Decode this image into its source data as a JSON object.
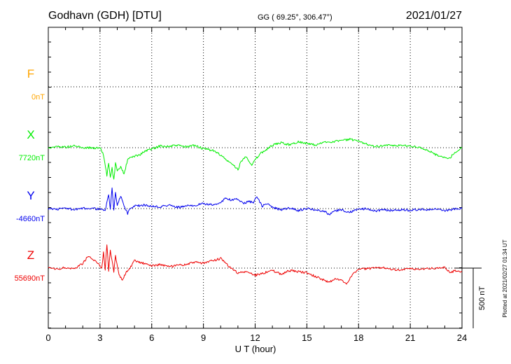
{
  "header": {
    "station": "Godhavn (GDH)  [DTU]",
    "coords": "GG ( 69.25°, 306.47°)",
    "date": "2021/01/27"
  },
  "plotted_at": "Plotted at 2021/02/27 01:34  UT",
  "scale_label": "500 nT",
  "chart_data": {
    "type": "line",
    "xlabel": "U T (hour)",
    "xlim": [
      0,
      24
    ],
    "xticks": [
      "0",
      "3",
      "6",
      "9",
      "12",
      "15",
      "18",
      "21",
      "24"
    ],
    "y_unit_per_row_nT": 500,
    "scale_bar_nT": 500,
    "grid": true,
    "series": [
      {
        "name": "F",
        "baseline": "0nT",
        "color": "#ffa500",
        "points": []
      },
      {
        "name": "X",
        "baseline": "7720nT",
        "color": "#00ee00",
        "points": [
          [
            0,
            0
          ],
          [
            0.5,
            10
          ],
          [
            1,
            5
          ],
          [
            1.5,
            15
          ],
          [
            2,
            0
          ],
          [
            2.5,
            0
          ],
          [
            3,
            -5
          ],
          [
            3.2,
            -60
          ],
          [
            3.4,
            -230
          ],
          [
            3.5,
            -120
          ],
          [
            3.6,
            -250
          ],
          [
            3.7,
            -170
          ],
          [
            3.8,
            -270
          ],
          [
            3.9,
            -130
          ],
          [
            4,
            -200
          ],
          [
            4.2,
            -160
          ],
          [
            4.4,
            -220
          ],
          [
            4.6,
            -100
          ],
          [
            4.8,
            -80
          ],
          [
            5,
            -70
          ],
          [
            5.3,
            -60
          ],
          [
            5.6,
            -30
          ],
          [
            6,
            -10
          ],
          [
            6.5,
            15
          ],
          [
            7,
            10
          ],
          [
            7.5,
            20
          ],
          [
            8,
            5
          ],
          [
            8.5,
            20
          ],
          [
            9,
            -10
          ],
          [
            9.5,
            -20
          ],
          [
            10,
            -60
          ],
          [
            10.3,
            -100
          ],
          [
            10.6,
            -130
          ],
          [
            11,
            -180
          ],
          [
            11.2,
            -110
          ],
          [
            11.5,
            -70
          ],
          [
            11.8,
            -150
          ],
          [
            12,
            -100
          ],
          [
            12.3,
            -50
          ],
          [
            12.6,
            -20
          ],
          [
            13,
            20
          ],
          [
            13.5,
            40
          ],
          [
            14,
            25
          ],
          [
            14.5,
            50
          ],
          [
            15,
            35
          ],
          [
            15.5,
            20
          ],
          [
            16,
            45
          ],
          [
            16.5,
            50
          ],
          [
            17,
            60
          ],
          [
            17.5,
            70
          ],
          [
            18,
            50
          ],
          [
            18.5,
            30
          ],
          [
            19,
            10
          ],
          [
            19.5,
            20
          ],
          [
            20,
            15
          ],
          [
            20.5,
            20
          ],
          [
            21,
            15
          ],
          [
            21.5,
            0
          ],
          [
            22,
            -20
          ],
          [
            22.5,
            -60
          ],
          [
            23,
            -80
          ],
          [
            23.3,
            -90
          ],
          [
            23.5,
            -50
          ],
          [
            24,
            0
          ]
        ]
      },
      {
        "name": "Y",
        "baseline": "-4660nT",
        "color": "#0000ee",
        "points": [
          [
            0,
            0
          ],
          [
            0.5,
            -5
          ],
          [
            1,
            5
          ],
          [
            1.5,
            -10
          ],
          [
            2,
            0
          ],
          [
            2.5,
            5
          ],
          [
            3,
            -5
          ],
          [
            3.3,
            -20
          ],
          [
            3.5,
            120
          ],
          [
            3.6,
            0
          ],
          [
            3.7,
            180
          ],
          [
            3.8,
            -20
          ],
          [
            3.9,
            140
          ],
          [
            4,
            20
          ],
          [
            4.2,
            110
          ],
          [
            4.4,
            20
          ],
          [
            4.6,
            -40
          ],
          [
            4.8,
            10
          ],
          [
            5,
            20
          ],
          [
            5.5,
            30
          ],
          [
            6,
            20
          ],
          [
            6.5,
            15
          ],
          [
            7,
            30
          ],
          [
            7.5,
            10
          ],
          [
            8,
            20
          ],
          [
            8.5,
            30
          ],
          [
            9,
            40
          ],
          [
            9.5,
            30
          ],
          [
            10,
            50
          ],
          [
            10.3,
            90
          ],
          [
            10.6,
            70
          ],
          [
            11,
            80
          ],
          [
            11.3,
            40
          ],
          [
            11.6,
            60
          ],
          [
            11.9,
            50
          ],
          [
            12.1,
            100
          ],
          [
            12.4,
            20
          ],
          [
            12.7,
            40
          ],
          [
            13,
            10
          ],
          [
            13.5,
            -10
          ],
          [
            14,
            5
          ],
          [
            14.5,
            -15
          ],
          [
            15,
            0
          ],
          [
            15.5,
            -10
          ],
          [
            16,
            -20
          ],
          [
            16.3,
            -50
          ],
          [
            16.6,
            -20
          ],
          [
            17,
            -10
          ],
          [
            17.5,
            -30
          ],
          [
            18,
            -5
          ],
          [
            18.5,
            0
          ],
          [
            19,
            -20
          ],
          [
            19.5,
            -10
          ],
          [
            20,
            -15
          ],
          [
            20.5,
            -10
          ],
          [
            21,
            -15
          ],
          [
            21.5,
            -5
          ],
          [
            22,
            -10
          ],
          [
            22.5,
            -5
          ],
          [
            23,
            -20
          ],
          [
            23.5,
            -5
          ],
          [
            24,
            0
          ]
        ]
      },
      {
        "name": "Z",
        "baseline": "55690nT",
        "color": "#ee0000",
        "points": [
          [
            0,
            0
          ],
          [
            0.5,
            -10
          ],
          [
            1,
            5
          ],
          [
            1.5,
            -5
          ],
          [
            2,
            40
          ],
          [
            2.3,
            100
          ],
          [
            2.6,
            70
          ],
          [
            2.9,
            40
          ],
          [
            3.1,
            0
          ],
          [
            3.2,
            130
          ],
          [
            3.3,
            -10
          ],
          [
            3.4,
            200
          ],
          [
            3.5,
            -20
          ],
          [
            3.6,
            150
          ],
          [
            3.7,
            60
          ],
          [
            3.8,
            -30
          ],
          [
            3.9,
            100
          ],
          [
            4.1,
            -60
          ],
          [
            4.3,
            -100
          ],
          [
            4.5,
            -40
          ],
          [
            4.7,
            -10
          ],
          [
            5,
            60
          ],
          [
            5.5,
            40
          ],
          [
            6,
            20
          ],
          [
            6.5,
            30
          ],
          [
            7,
            10
          ],
          [
            7.5,
            20
          ],
          [
            8,
            30
          ],
          [
            8.5,
            50
          ],
          [
            9,
            40
          ],
          [
            9.5,
            60
          ],
          [
            10,
            80
          ],
          [
            10.5,
            10
          ],
          [
            11,
            -40
          ],
          [
            11.5,
            -30
          ],
          [
            12,
            -60
          ],
          [
            12.5,
            -40
          ],
          [
            13,
            -20
          ],
          [
            13.5,
            -50
          ],
          [
            14,
            -20
          ],
          [
            14.5,
            -30
          ],
          [
            15,
            -40
          ],
          [
            15.5,
            -70
          ],
          [
            16,
            -100
          ],
          [
            16.3,
            -120
          ],
          [
            16.6,
            -90
          ],
          [
            17,
            -100
          ],
          [
            17.3,
            -130
          ],
          [
            17.6,
            -60
          ],
          [
            18,
            -10
          ],
          [
            18.5,
            -5
          ],
          [
            19,
            0
          ],
          [
            19.5,
            5
          ],
          [
            20,
            -10
          ],
          [
            20.5,
            -15
          ],
          [
            21,
            -5
          ],
          [
            21.5,
            -10
          ],
          [
            22,
            0
          ],
          [
            22.5,
            -5
          ],
          [
            23,
            10
          ],
          [
            23.3,
            -40
          ],
          [
            23.6,
            -20
          ],
          [
            24,
            -30
          ]
        ]
      }
    ]
  }
}
